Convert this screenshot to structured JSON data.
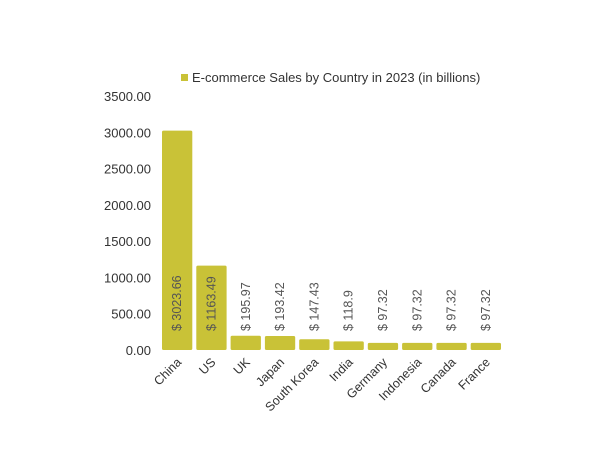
{
  "chart_data": {
    "type": "bar",
    "categories": [
      "China",
      "US",
      "UK",
      "Japan",
      "South Korea",
      "India",
      "Germany",
      "Indonesia",
      "Canada",
      "France"
    ],
    "series": [
      {
        "name": "E-commerce Sales by Country in 2023 (in billions)",
        "values": [
          3023.66,
          1163.49,
          195.97,
          193.42,
          147.43,
          118.9,
          97.32,
          97.32,
          97.32,
          97.32
        ],
        "color": "#c9c237"
      }
    ],
    "data_labels": [
      "$ 3023.66",
      "$ 1163.49",
      "$ 195.97",
      "$ 193.42",
      "$ 147.43",
      "$ 118.9",
      "$ 97.32",
      "$ 97.32",
      "$ 97.32",
      "$ 97.32"
    ],
    "y_ticks": [
      "0.00",
      "500.00",
      "1000.00",
      "1500.00",
      "2000.00",
      "2500.00",
      "3000.00",
      "3500.00"
    ],
    "ylim": [
      0,
      3500
    ],
    "legend": {
      "placement": "top",
      "label": "E-commerce Sales by Country in 2023 (in billions)"
    },
    "grid": false,
    "title": "",
    "xlabel": "",
    "ylabel": ""
  }
}
